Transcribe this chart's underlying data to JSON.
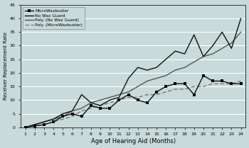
{
  "months": [
    1,
    2,
    3,
    4,
    5,
    6,
    7,
    8,
    9,
    10,
    11,
    12,
    13,
    14,
    15,
    16,
    17,
    18,
    19,
    20,
    21,
    22,
    23,
    24
  ],
  "microwaxbuster": [
    0,
    0.5,
    1,
    2,
    4,
    5,
    4,
    8,
    7,
    7,
    10,
    12,
    10,
    9,
    13,
    15,
    16,
    16,
    12,
    19,
    17,
    17,
    16,
    16
  ],
  "no_wax_guard": [
    0,
    1,
    2,
    3,
    5,
    6,
    12,
    9,
    8,
    10,
    11,
    18,
    22,
    21,
    22,
    25,
    28,
    27,
    34,
    26,
    30,
    35,
    29,
    40
  ],
  "poly_no_wax": [
    0,
    1,
    2,
    3,
    4,
    6,
    7,
    9,
    10,
    11,
    12,
    13,
    15,
    17,
    18,
    19,
    21,
    22,
    24,
    26,
    27,
    29,
    31,
    35
  ],
  "poly_micro": [
    0,
    0.5,
    1,
    2,
    3,
    4,
    6,
    7,
    8,
    9,
    10,
    11,
    11,
    12,
    12,
    13,
    14,
    14,
    15,
    15,
    16,
    16,
    16,
    17
  ],
  "ylim": [
    0,
    45
  ],
  "yticks": [
    0,
    5,
    10,
    15,
    20,
    25,
    30,
    35,
    40,
    45
  ],
  "xlabel": "Age of Hearing Aid (Months)",
  "ylabel": "Receiver Replacement Rate",
  "bg_color": "#c8dada",
  "grid_color": "#ffffff",
  "line_color_micro": "#111111",
  "line_color_nwg": "#111111",
  "line_color_poly_nwg": "#555555",
  "line_color_poly_micro": "#777777",
  "legend_labels": [
    "MicroWaxbuster",
    "No Wax Guard",
    "Poly. (No Wax Guard)",
    "Poly. (MicroWaxbuster)"
  ]
}
